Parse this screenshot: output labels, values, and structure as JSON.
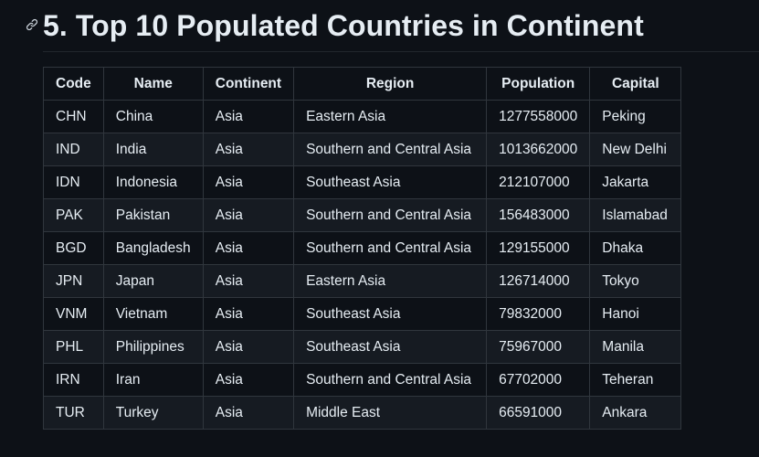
{
  "heading": {
    "anchor_icon": "link-icon",
    "title": "5. Top 10 Populated Countries in Continent"
  },
  "table": {
    "columns": [
      "Code",
      "Name",
      "Continent",
      "Region",
      "Population",
      "Capital"
    ],
    "rows": [
      [
        "CHN",
        "China",
        "Asia",
        "Eastern Asia",
        "1277558000",
        "Peking"
      ],
      [
        "IND",
        "India",
        "Asia",
        "Southern and Central Asia",
        "1013662000",
        "New Delhi"
      ],
      [
        "IDN",
        "Indonesia",
        "Asia",
        "Southeast Asia",
        "212107000",
        "Jakarta"
      ],
      [
        "PAK",
        "Pakistan",
        "Asia",
        "Southern and Central Asia",
        "156483000",
        "Islamabad"
      ],
      [
        "BGD",
        "Bangladesh",
        "Asia",
        "Southern and Central Asia",
        "129155000",
        "Dhaka"
      ],
      [
        "JPN",
        "Japan",
        "Asia",
        "Eastern Asia",
        "126714000",
        "Tokyo"
      ],
      [
        "VNM",
        "Vietnam",
        "Asia",
        "Southeast Asia",
        "79832000",
        "Hanoi"
      ],
      [
        "PHL",
        "Philippines",
        "Asia",
        "Southeast Asia",
        "75967000",
        "Manila"
      ],
      [
        "IRN",
        "Iran",
        "Asia",
        "Southern and Central Asia",
        "67702000",
        "Teheran"
      ],
      [
        "TUR",
        "Turkey",
        "Asia",
        "Middle East",
        "66591000",
        "Ankara"
      ]
    ]
  }
}
